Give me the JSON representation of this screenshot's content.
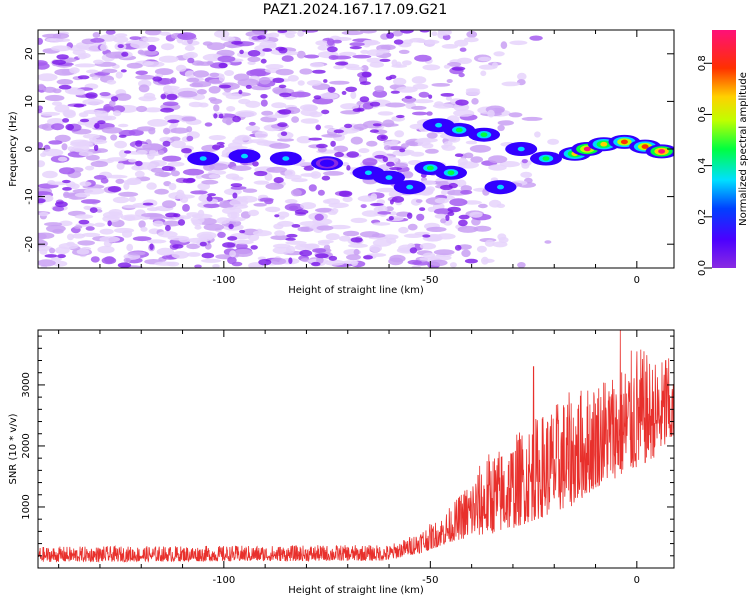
{
  "title": "PAZ1.2024.167.17.09.G21",
  "colors": {
    "snr_line": "#e8302c",
    "axis": "#000000",
    "scatter_base": "#a855f7"
  },
  "chart_data": [
    {
      "type": "heatmap",
      "title": "PAZ1.2024.167.17.09.G21",
      "xlabel": "Height of straight line (km)",
      "ylabel": "Frequency (Hz)",
      "xlim": [
        -145,
        9
      ],
      "ylim": [
        -25,
        25
      ],
      "x_ticks": [
        {
          "value": -100,
          "label": "-100"
        },
        {
          "value": -50,
          "label": "-50"
        },
        {
          "value": 0,
          "label": "0"
        }
      ],
      "y_ticks": [
        {
          "value": 20,
          "label": "20"
        },
        {
          "value": 10,
          "label": "10"
        },
        {
          "value": 0,
          "label": "0"
        },
        {
          "value": -10,
          "label": "-10"
        },
        {
          "value": -20,
          "label": "-20"
        }
      ],
      "colorbar": {
        "label": "Normalized spectral amplitude",
        "range": [
          0,
          0.93
        ],
        "colormap": "hsv-reversed (purple→blue→cyan→green→yellow→red→magenta)",
        "ticks": [
          {
            "value": 0.0,
            "label": "0.0"
          },
          {
            "value": 0.2,
            "label": "0.2"
          },
          {
            "value": 0.4,
            "label": "0.4"
          },
          {
            "value": 0.6,
            "label": "0.6"
          },
          {
            "value": 0.8,
            "label": "0.8"
          }
        ]
      },
      "ridge": [
        {
          "x": -105,
          "y": -2,
          "amp": 0.25
        },
        {
          "x": -95,
          "y": -1.5,
          "amp": 0.3
        },
        {
          "x": -85,
          "y": -2,
          "amp": 0.25
        },
        {
          "x": -75,
          "y": -3,
          "amp": 0.2
        },
        {
          "x": -65,
          "y": -5,
          "amp": 0.25
        },
        {
          "x": -60,
          "y": -6,
          "amp": 0.3
        },
        {
          "x": -55,
          "y": -8,
          "amp": 0.3
        },
        {
          "x": -50,
          "y": -4,
          "amp": 0.4
        },
        {
          "x": -45,
          "y": -5,
          "amp": 0.35
        },
        {
          "x": -48,
          "y": 5,
          "amp": 0.3
        },
        {
          "x": -43,
          "y": 4,
          "amp": 0.45
        },
        {
          "x": -37,
          "y": 3,
          "amp": 0.4
        },
        {
          "x": -33,
          "y": -8,
          "amp": 0.3
        },
        {
          "x": -28,
          "y": 0,
          "amp": 0.3
        },
        {
          "x": -22,
          "y": -2,
          "amp": 0.45
        },
        {
          "x": -15,
          "y": -1,
          "amp": 0.6
        },
        {
          "x": -12,
          "y": 0,
          "amp": 0.8
        },
        {
          "x": -8,
          "y": 1,
          "amp": 0.6
        },
        {
          "x": -3,
          "y": 1.5,
          "amp": 0.75
        },
        {
          "x": 2,
          "y": 0.5,
          "amp": 0.7
        },
        {
          "x": 6,
          "y": -0.5,
          "amp": 0.85
        }
      ]
    },
    {
      "type": "line",
      "xlabel": "Height of straight line (km)",
      "ylabel": "SNR (10 * v/v)",
      "xlim": [
        -145,
        9
      ],
      "ylim": [
        0,
        3900
      ],
      "x_ticks": [
        {
          "value": -100,
          "label": "-100"
        },
        {
          "value": -50,
          "label": "-50"
        },
        {
          "value": 0,
          "label": "0"
        }
      ],
      "y_ticks": [
        {
          "value": 1000,
          "label": "1000"
        },
        {
          "value": 2000,
          "label": "2000"
        },
        {
          "value": 3000,
          "label": "3000"
        }
      ],
      "envelope": {
        "x": [
          -145,
          -60,
          -56,
          -52,
          -48,
          -44,
          -40,
          -36,
          -32,
          -28,
          -24,
          -20,
          -16,
          -12,
          -8,
          -4,
          0,
          4,
          8,
          9
        ],
        "y_lo": [
          100,
          120,
          200,
          250,
          350,
          450,
          500,
          550,
          600,
          700,
          800,
          900,
          1000,
          1200,
          1400,
          1500,
          1600,
          1800,
          2000,
          2100
        ],
        "y_hi": [
          350,
          380,
          480,
          650,
          800,
          1100,
          1500,
          1900,
          2000,
          2300,
          2500,
          2700,
          2900,
          3000,
          3200,
          3300,
          3700,
          3400,
          3450,
          3000
        ]
      },
      "peaks": [
        {
          "x": -25,
          "y": 3300
        },
        {
          "x": -4,
          "y": 3900
        },
        {
          "x": 7,
          "y": 3400
        }
      ]
    }
  ]
}
